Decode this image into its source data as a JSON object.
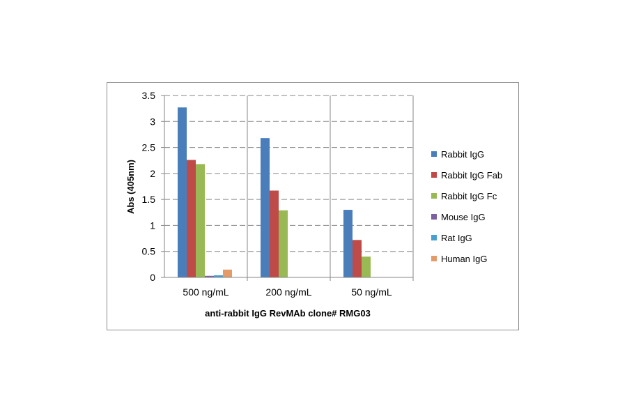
{
  "chart_data": {
    "type": "bar",
    "categories": [
      "500 ng/mL",
      "200 ng/mL",
      "50 ng/mL"
    ],
    "xlabel": "anti-rabbit  IgG RevMAb clone# RMG03",
    "ylabel": "Abs (405nm)",
    "ylim": [
      0,
      3.5
    ],
    "yticks": [
      "0",
      "0.5",
      "1",
      "1.5",
      "2",
      "2.5",
      "3",
      "3.5"
    ],
    "grid": true,
    "legend_position": "right",
    "series": [
      {
        "name": "Rabbit IgG",
        "color": "#4a7ebb",
        "values": [
          3.27,
          2.68,
          1.3
        ]
      },
      {
        "name": "Rabbit IgG Fab",
        "color": "#be4b48",
        "values": [
          2.26,
          1.67,
          0.72
        ]
      },
      {
        "name": "Rabbit IgG Fc",
        "color": "#98b954",
        "values": [
          2.18,
          1.29,
          0.4
        ]
      },
      {
        "name": "Mouse IgG",
        "color": "#7d60a0",
        "values": [
          0.03,
          0.0,
          0.0
        ]
      },
      {
        "name": "Rat IgG",
        "color": "#4a9fd1",
        "values": [
          0.04,
          0.0,
          0.0
        ]
      },
      {
        "name": "Human IgG",
        "color": "#e39b6a",
        "values": [
          0.15,
          0.0,
          0.0
        ]
      }
    ]
  }
}
